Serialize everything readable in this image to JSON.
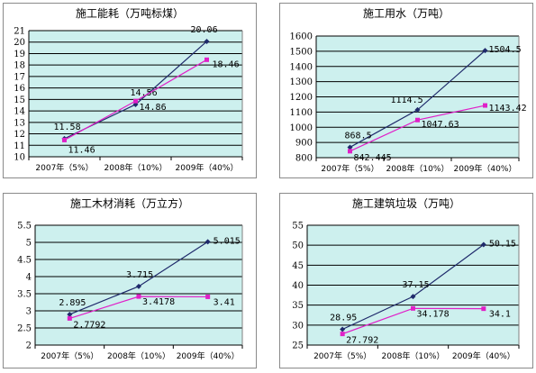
{
  "colors": {
    "plot_bg": "#cdf0ee",
    "grid": "#000000",
    "series_a": "#1f2a6b",
    "series_b": "#e020c8"
  },
  "chart_data": [
    {
      "type": "line",
      "title": "施工能耗（万吨标煤）",
      "categories": [
        "2007年（5%）",
        "2008年（10%）",
        "2009年（40%）"
      ],
      "ylim": [
        10,
        21
      ],
      "yticks": [
        "10",
        "11",
        "12",
        "13",
        "14",
        "15",
        "16",
        "17",
        "18",
        "19",
        "20",
        "21"
      ],
      "grid": true,
      "legend": "none",
      "series": [
        {
          "values": [
            11.58,
            14.56,
            20.06
          ],
          "labels": [
            "11.58",
            "14.56",
            "20.06"
          ]
        },
        {
          "values": [
            11.46,
            14.86,
            18.46
          ],
          "labels": [
            "11.46",
            "14.86",
            "18.46"
          ]
        }
      ]
    },
    {
      "type": "line",
      "title": "施工用水（万吨）",
      "categories": [
        "2007年（5%）",
        "2008年（10%）",
        "2009年（40%）"
      ],
      "ylim": [
        800,
        1600
      ],
      "yticks": [
        "800",
        "900",
        "1000",
        "1100",
        "1200",
        "1300",
        "1400",
        "1500",
        "1600"
      ],
      "grid": true,
      "legend": "none",
      "series": [
        {
          "values": [
            868.5,
            1114.5,
            1504.5
          ],
          "labels": [
            "868.5",
            "1114.5",
            "1504.5"
          ]
        },
        {
          "values": [
            842.445,
            1047.63,
            1143.42
          ],
          "labels": [
            "842.445",
            "1047.63",
            "1143.42"
          ]
        }
      ]
    },
    {
      "type": "line",
      "title": "施工木材消耗（万立方）",
      "categories": [
        "2007年（5%）",
        "2008年（10%）",
        "2009年（40%）"
      ],
      "ylim": [
        2,
        5.5
      ],
      "yticks": [
        "2",
        "2.5",
        "3",
        "3.5",
        "4",
        "4.5",
        "5",
        "5.5"
      ],
      "grid": true,
      "legend": "none",
      "series": [
        {
          "values": [
            2.895,
            3.715,
            5.015
          ],
          "labels": [
            "2.895",
            "3.715",
            "5.015"
          ]
        },
        {
          "values": [
            2.7792,
            3.4178,
            3.41
          ],
          "labels": [
            "2.7792",
            "3.4178",
            "3.41"
          ]
        }
      ]
    },
    {
      "type": "line",
      "title": "施工建筑垃圾（万吨）",
      "categories": [
        "2007年（5%）",
        "2008年（10%）",
        "2009年（40%）"
      ],
      "ylim": [
        25,
        55
      ],
      "yticks": [
        "25",
        "30",
        "35",
        "40",
        "45",
        "50",
        "55"
      ],
      "grid": true,
      "legend": "none",
      "series": [
        {
          "values": [
            28.95,
            37.15,
            50.15
          ],
          "labels": [
            "28.95",
            "37.15",
            "50.15"
          ]
        },
        {
          "values": [
            27.792,
            34.178,
            34.1
          ],
          "labels": [
            "27.792",
            "34.178",
            "34.1"
          ]
        }
      ]
    }
  ]
}
